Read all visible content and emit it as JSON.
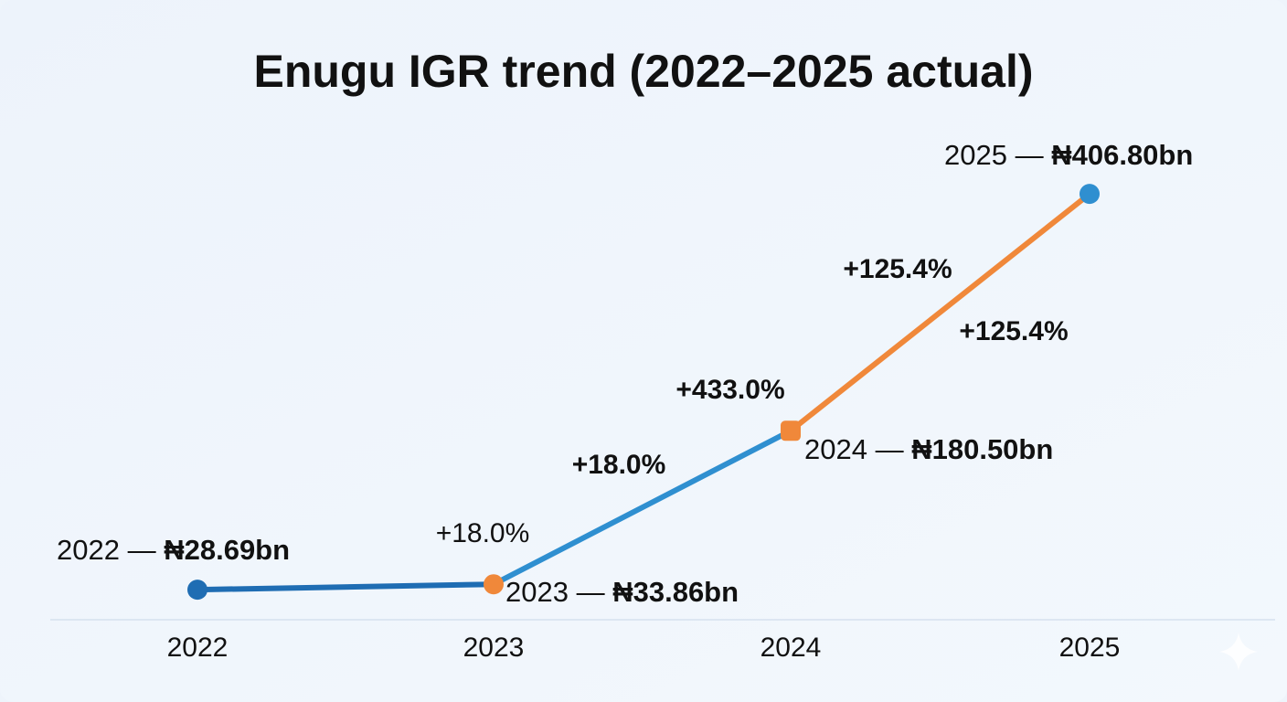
{
  "chart_data": {
    "type": "line",
    "title": "Enugu IGR trend (2022–2025 actual)",
    "categories": [
      "2022",
      "2023",
      "2024",
      "2025"
    ],
    "values": [
      28.69,
      33.86,
      180.5,
      406.8
    ],
    "value_labels": [
      "₦28.69bn",
      "₦33.86bn",
      "₦180.50bn",
      "₦406.80bn"
    ],
    "point_label_separator": "—",
    "segment_colors": [
      "#1f6db3",
      "#2f8fd0",
      "#f0883a"
    ],
    "marker_colors": [
      "#1f6db3",
      "#f0883a",
      "#f0883a",
      "#2f8fd0"
    ],
    "annotations": [
      {
        "text": "+18.0%",
        "bold": false
      },
      {
        "text": "+18.0%",
        "bold": true
      },
      {
        "text": "+433.0%",
        "bold": true
      },
      {
        "text": "+125.4%",
        "bold": true
      },
      {
        "text": "+125.4%",
        "bold": true
      }
    ],
    "ylim": [
      0,
      420
    ]
  }
}
